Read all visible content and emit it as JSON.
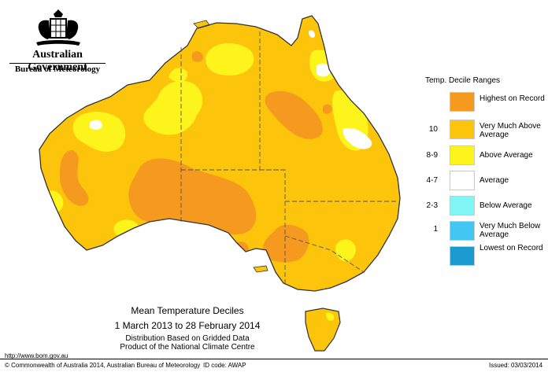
{
  "header": {
    "government": "Australian Government",
    "bureau": "Bureau of Meteorology"
  },
  "legend": {
    "title": "Temp. Decile Ranges",
    "items": [
      {
        "code": "",
        "label": "Highest on Record",
        "color": "#f59a1e"
      },
      {
        "code": "10",
        "label": "Very Much Above Average",
        "color": "#fcc40a"
      },
      {
        "code": "8-9",
        "label": "Above Average",
        "color": "#fcf41b"
      },
      {
        "code": "4-7",
        "label": "Average",
        "color": "#ffffff"
      },
      {
        "code": "2-3",
        "label": "Below Average",
        "color": "#7ff6f3"
      },
      {
        "code": "1",
        "label": "Very Much Below Average",
        "color": "#43c6f2"
      },
      {
        "code": "",
        "label": "Lowest on Record",
        "color": "#1b9bd0"
      }
    ]
  },
  "caption": {
    "title": "Mean Temperature Deciles",
    "range": "1 March 2013 to 28 February 2014",
    "line3": "Distribution Based on Gridded Data",
    "line4": "Product of the National Climate Centre"
  },
  "footer": {
    "url": "http://www.bom.gov.au",
    "copyright": "© Commonwealth of Australia 2014, Australian Bureau of Meteorology",
    "idcode": "ID code: AWAP",
    "issued": "Issued: 03/03/2014"
  },
  "colors": {
    "record": "#f59a1e",
    "very_much_above": "#fcc40a",
    "above": "#fcf41b",
    "average": "#ffffff",
    "boundary": "#555555",
    "coast": "#333333"
  }
}
